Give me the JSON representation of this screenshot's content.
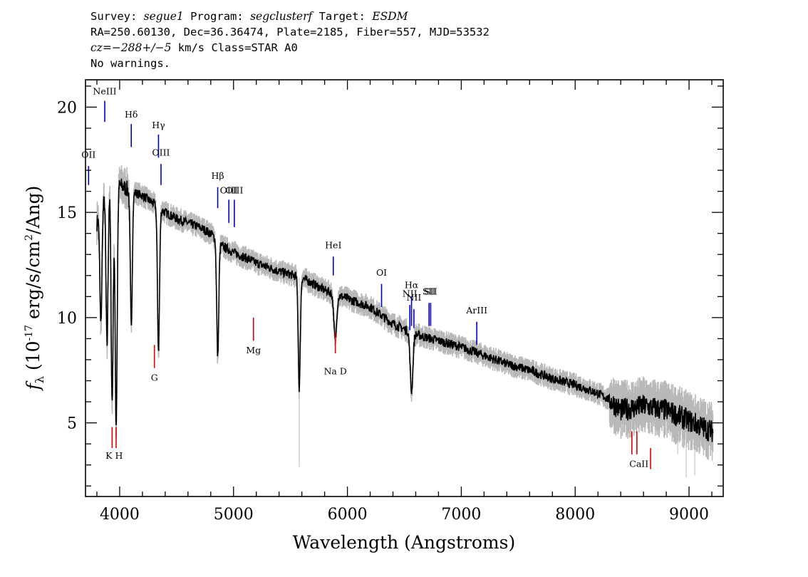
{
  "header": {
    "line1": {
      "survey_label": "Survey: ",
      "survey": "segue1",
      "program_label": " Program: ",
      "program": "segclusterf",
      "target_label": " Target: ",
      "target": "ESDM"
    },
    "line2": "RA=250.60130, Dec=36.36474, Plate=2185, Fiber=557, MJD=53532",
    "line3": {
      "cz": "cz=−288+/−5",
      "rest": " km/s Class=STAR A0"
    },
    "line4": "No warnings."
  },
  "chart_data": {
    "type": "line",
    "xlabel": "Wavelength (Angstroms)",
    "ylabel": "f_λ (10^-17 erg/s/cm^2/Ang)",
    "xlim": [
      3700,
      9300
    ],
    "ylim": [
      1.5,
      21.3
    ],
    "xticks": [
      4000,
      5000,
      6000,
      7000,
      8000,
      9000
    ],
    "yticks": [
      5,
      10,
      15,
      20
    ],
    "grid": false,
    "colors": {
      "flux": "#000000",
      "noise": "#b8b8b8",
      "emission": "#0000cc",
      "absorption": "#dd0000"
    },
    "series": [
      {
        "role": "flux",
        "continuum": [
          [
            3800,
            14.5
          ],
          [
            3850,
            15.4
          ],
          [
            3900,
            16.3
          ],
          [
            4000,
            16.3
          ],
          [
            4100,
            16.0
          ],
          [
            4200,
            15.8
          ],
          [
            4300,
            15.4
          ],
          [
            4400,
            15.0
          ],
          [
            4500,
            14.7
          ],
          [
            4600,
            14.5
          ],
          [
            4700,
            14.3
          ],
          [
            4800,
            14.0
          ],
          [
            4900,
            13.4
          ],
          [
            5000,
            13.1
          ],
          [
            5200,
            12.6
          ],
          [
            5400,
            12.2
          ],
          [
            5600,
            11.9
          ],
          [
            5800,
            11.3
          ],
          [
            6000,
            10.9
          ],
          [
            6200,
            10.5
          ],
          [
            6400,
            9.7
          ],
          [
            6600,
            9.2
          ],
          [
            6800,
            8.9
          ],
          [
            7000,
            8.6
          ],
          [
            7200,
            8.2
          ],
          [
            7400,
            7.8
          ],
          [
            7600,
            7.5
          ],
          [
            7800,
            7.1
          ],
          [
            8000,
            6.8
          ],
          [
            8200,
            6.4
          ],
          [
            8300,
            6.1
          ],
          [
            8400,
            5.6
          ],
          [
            8600,
            5.8
          ],
          [
            8800,
            5.6
          ],
          [
            9000,
            5.1
          ],
          [
            9200,
            4.6
          ]
        ],
        "absorption_lines": [
          {
            "x": 3835,
            "depth": 5.5
          },
          {
            "x": 3889,
            "depth": 7.4
          },
          {
            "x": 3934,
            "depth": 10.3
          },
          {
            "x": 3969,
            "depth": 11.4
          },
          {
            "x": 4102,
            "depth": 6.3
          },
          {
            "x": 4341,
            "depth": 6.8
          },
          {
            "x": 4861,
            "depth": 5.5
          },
          {
            "x": 5577,
            "depth": 5.3
          },
          {
            "x": 5893,
            "depth": 2.2
          },
          {
            "x": 6563,
            "depth": 2.8
          }
        ],
        "noise_spikes": [
          {
            "x": 5577,
            "low": 2.9,
            "high": 11.9
          },
          {
            "x": 8900,
            "low": 3.5,
            "high": 6.6
          },
          {
            "x": 8975,
            "low": 2.4,
            "high": 6.5
          },
          {
            "x": 9050,
            "low": 2.5,
            "high": 5.4
          }
        ]
      }
    ],
    "emission_lines": [
      {
        "label": "OII",
        "x": 3727,
        "top": 17.2,
        "bottom": 16.3,
        "label_y": 17.6
      },
      {
        "label": "NeIII",
        "x": 3869,
        "top": 20.3,
        "bottom": 19.3,
        "label_y": 20.6
      },
      {
        "label": "Hδ",
        "x": 4102,
        "top": 19.2,
        "bottom": 18.1,
        "label_y": 19.5
      },
      {
        "label": "Hγ",
        "x": 4341,
        "top": 18.7,
        "bottom": 17.6,
        "label_y": 19.0
      },
      {
        "label": "OIII",
        "x": 4363,
        "top": 17.3,
        "bottom": 16.3,
        "label_y": 17.7
      },
      {
        "label": "Hβ",
        "x": 4861,
        "top": 16.2,
        "bottom": 15.2,
        "label_y": 16.6
      },
      {
        "label": "OIII",
        "x": 4959,
        "top": 15.6,
        "bottom": 14.5,
        "label_y": 15.9
      },
      {
        "label": "OIII",
        "x": 5007,
        "top": 15.6,
        "bottom": 14.3,
        "label_y": 15.9
      },
      {
        "label": "HeI",
        "x": 5876,
        "top": 12.9,
        "bottom": 12.0,
        "label_y": 13.3
      },
      {
        "label": "OI",
        "x": 6300,
        "top": 11.6,
        "bottom": 10.5,
        "label_y": 12.0
      },
      {
        "label": "NII",
        "x": 6548,
        "top": 10.6,
        "bottom": 9.4,
        "label_y": 11.0
      },
      {
        "label": "Hα",
        "x": 6563,
        "top": 11.0,
        "bottom": 9.6,
        "label_y": 11.4
      },
      {
        "label": "NII",
        "x": 6584,
        "top": 10.4,
        "bottom": 9.5,
        "label_y": 10.8
      },
      {
        "label": "SII",
        "x": 6717,
        "top": 10.7,
        "bottom": 9.6,
        "label_y": 11.1
      },
      {
        "label": "SII",
        "x": 6731,
        "top": 10.7,
        "bottom": 9.6,
        "label_y": 11.1
      },
      {
        "label": "ArIII",
        "x": 7136,
        "top": 9.8,
        "bottom": 8.7,
        "label_y": 10.2
      }
    ],
    "absorption_markers": [
      {
        "label": "K",
        "x": 3934,
        "top": 4.8,
        "bottom": 3.8
      },
      {
        "label": "H",
        "x": 3969,
        "top": 4.8,
        "bottom": 3.8
      },
      {
        "label": "G",
        "x": 4305,
        "top": 8.7,
        "bottom": 7.6
      },
      {
        "label": "Mg",
        "x": 5175,
        "top": 10.0,
        "bottom": 8.9
      },
      {
        "label": "Na D",
        "x": 5894,
        "top": 9.3,
        "bottom": 8.3
      },
      {
        "label": "CaII",
        "x": 8498,
        "top": 4.6,
        "bottom": 3.5
      },
      {
        "label": "CaII",
        "x": 8542,
        "top": 4.6,
        "bottom": 3.5
      },
      {
        "label": "CaII",
        "x": 8662,
        "top": 3.8,
        "bottom": 2.8
      }
    ],
    "absorption_labels": [
      {
        "text": "K H",
        "x": 3952,
        "y": 3.3
      },
      {
        "text": "G",
        "x": 4305,
        "y": 7.0
      },
      {
        "text": "Mg",
        "x": 5175,
        "y": 8.3
      },
      {
        "text": "Na  D",
        "x": 5894,
        "y": 7.3
      },
      {
        "text": "CaII",
        "x": 8560,
        "y": 2.9
      }
    ]
  }
}
